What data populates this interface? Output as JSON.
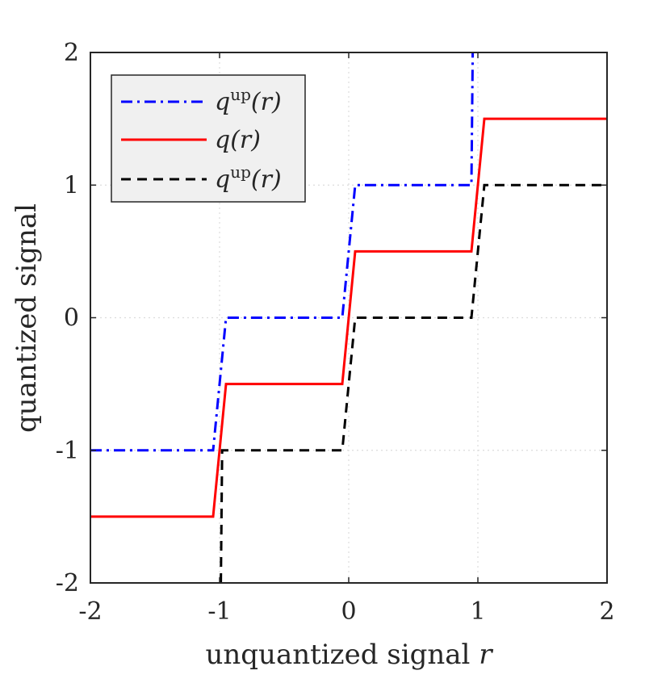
{
  "chart_data": {
    "type": "line",
    "xlabel": "unquantized signal",
    "xlabel_var": "r",
    "ylabel": "quantized signal",
    "xlim": [
      -2,
      2
    ],
    "ylim": [
      -2,
      2
    ],
    "xticks": [
      "-2",
      "-1",
      "0",
      "1",
      "2"
    ],
    "yticks": [
      "2",
      "1",
      "0",
      "-1",
      "-2"
    ],
    "grid": true,
    "legend_position": "top-left",
    "series": [
      {
        "name": "q^up(r)",
        "legend_base": "q",
        "legend_sup": "up",
        "legend_arg": "(r)",
        "color": "#0000ff",
        "style": "dashdot",
        "x": [
          -2,
          -1.05,
          -0.95,
          -0.05,
          0.05,
          0.95,
          0.96
        ],
        "y": [
          -1,
          -1,
          0,
          0,
          1,
          1,
          2
        ]
      },
      {
        "name": "q(r)",
        "legend_base": "q",
        "legend_sup": "",
        "legend_arg": "(r)",
        "color": "#ff0000",
        "style": "solid",
        "x": [
          -2,
          -1.05,
          -0.95,
          -0.05,
          0.05,
          0.95,
          1.05,
          2
        ],
        "y": [
          -1.5,
          -1.5,
          -0.5,
          -0.5,
          0.5,
          0.5,
          1.5,
          1.5
        ]
      },
      {
        "name": "q^up(r)",
        "legend_base": "q",
        "legend_sup": "up",
        "legend_arg": "(r)",
        "color": "#000000",
        "style": "dashed",
        "x": [
          -0.99,
          -0.98,
          -0.05,
          0.05,
          0.95,
          1.05,
          2
        ],
        "y": [
          -2,
          -1,
          -1,
          0,
          0,
          1,
          1
        ]
      }
    ]
  }
}
